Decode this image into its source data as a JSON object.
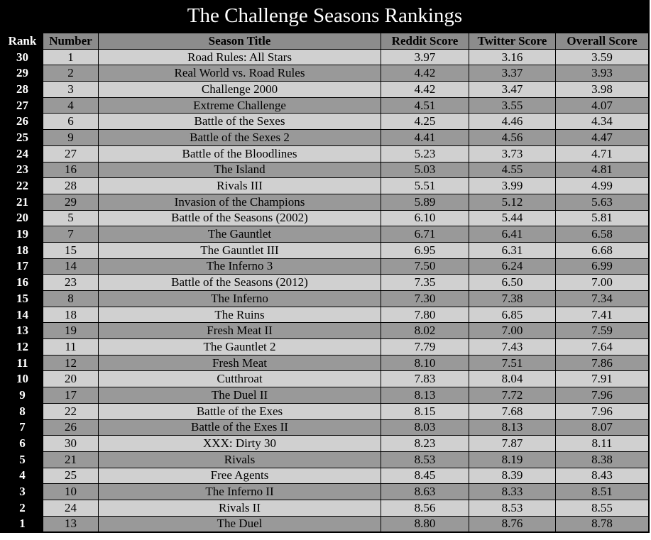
{
  "colors": {
    "background": "#000000",
    "title_text": "#ffffff",
    "header_bg": "#8c8c8c",
    "row_light": "#d0d0d0",
    "row_dark": "#999999"
  },
  "chart_data": {
    "type": "table",
    "title": "The Challenge Seasons Rankings",
    "columns": [
      "Rank",
      "Number",
      "Season Title",
      "Reddit Score",
      "Twitter Score",
      "Overall Score"
    ],
    "rows": [
      [
        "30",
        "1",
        "Road Rules: All Stars",
        "3.97",
        "3.16",
        "3.59"
      ],
      [
        "29",
        "2",
        "Real World vs. Road Rules",
        "4.42",
        "3.37",
        "3.93"
      ],
      [
        "28",
        "3",
        "Challenge 2000",
        "4.42",
        "3.47",
        "3.98"
      ],
      [
        "27",
        "4",
        "Extreme Challenge",
        "4.51",
        "3.55",
        "4.07"
      ],
      [
        "26",
        "6",
        "Battle of the Sexes",
        "4.25",
        "4.46",
        "4.34"
      ],
      [
        "25",
        "9",
        "Battle of the Sexes 2",
        "4.41",
        "4.56",
        "4.47"
      ],
      [
        "24",
        "27",
        "Battle of the Bloodlines",
        "5.23",
        "3.73",
        "4.71"
      ],
      [
        "23",
        "16",
        "The Island",
        "5.03",
        "4.55",
        "4.81"
      ],
      [
        "22",
        "28",
        "Rivals III",
        "5.51",
        "3.99",
        "4.99"
      ],
      [
        "21",
        "29",
        "Invasion of the Champions",
        "5.89",
        "5.12",
        "5.63"
      ],
      [
        "20",
        "5",
        "Battle of the Seasons (2002)",
        "6.10",
        "5.44",
        "5.81"
      ],
      [
        "19",
        "7",
        "The Gauntlet",
        "6.71",
        "6.41",
        "6.58"
      ],
      [
        "18",
        "15",
        "The Gauntlet III",
        "6.95",
        "6.31",
        "6.68"
      ],
      [
        "17",
        "14",
        "The Inferno 3",
        "7.50",
        "6.24",
        "6.99"
      ],
      [
        "16",
        "23",
        "Battle of the Seasons (2012)",
        "7.35",
        "6.50",
        "7.00"
      ],
      [
        "15",
        "8",
        "The Inferno",
        "7.30",
        "7.38",
        "7.34"
      ],
      [
        "14",
        "18",
        "The Ruins",
        "7.80",
        "6.85",
        "7.41"
      ],
      [
        "13",
        "19",
        "Fresh Meat II",
        "8.02",
        "7.00",
        "7.59"
      ],
      [
        "12",
        "11",
        "The Gauntlet 2",
        "7.79",
        "7.43",
        "7.64"
      ],
      [
        "11",
        "12",
        "Fresh Meat",
        "8.10",
        "7.51",
        "7.86"
      ],
      [
        "10",
        "20",
        "Cutthroat",
        "7.83",
        "8.04",
        "7.91"
      ],
      [
        "9",
        "17",
        "The Duel II",
        "8.13",
        "7.72",
        "7.96"
      ],
      [
        "8",
        "22",
        "Battle of the Exes",
        "8.15",
        "7.68",
        "7.96"
      ],
      [
        "7",
        "26",
        "Battle of the Exes II",
        "8.03",
        "8.13",
        "8.07"
      ],
      [
        "6",
        "30",
        "XXX: Dirty 30",
        "8.23",
        "7.87",
        "8.11"
      ],
      [
        "5",
        "21",
        "Rivals",
        "8.53",
        "8.19",
        "8.38"
      ],
      [
        "4",
        "25",
        "Free Agents",
        "8.45",
        "8.39",
        "8.43"
      ],
      [
        "3",
        "10",
        "The Inferno II",
        "8.63",
        "8.33",
        "8.51"
      ],
      [
        "2",
        "24",
        "Rivals II",
        "8.56",
        "8.53",
        "8.55"
      ],
      [
        "1",
        "13",
        "The Duel",
        "8.80",
        "8.76",
        "8.78"
      ]
    ]
  }
}
